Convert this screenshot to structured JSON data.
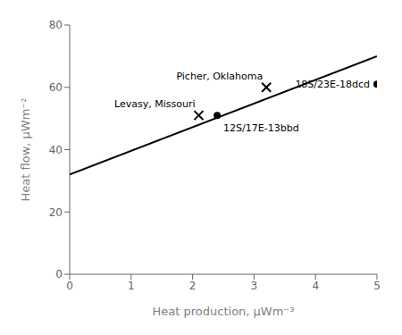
{
  "chart_data": {
    "type": "scatter",
    "x_label": "Heat production, μWm⁻³",
    "y_label": "Heat flow, μWm⁻²",
    "xlim": [
      0,
      5
    ],
    "ylim": [
      0,
      80
    ],
    "xticks": [
      0,
      1,
      2,
      3,
      4,
      5
    ],
    "yticks": [
      0,
      20,
      40,
      60,
      80
    ],
    "grid": false,
    "series": [
      {
        "type": "line",
        "color": "#000000",
        "x": [
          0,
          5
        ],
        "values": [
          32,
          70
        ]
      },
      {
        "type": "scatter",
        "marker": "x",
        "color": "#000000",
        "x": [
          2.1,
          3.2
        ],
        "values": [
          51,
          60
        ],
        "labels": [
          "Levasy, Missouri",
          "Picher, Oklahoma"
        ]
      },
      {
        "type": "scatter",
        "marker": "o",
        "color": "#000000",
        "x": [
          2.4,
          5.0
        ],
        "values": [
          51,
          61
        ],
        "labels": [
          "12S/17E-13bbd",
          "18S/23E-18dcd"
        ]
      }
    ]
  }
}
